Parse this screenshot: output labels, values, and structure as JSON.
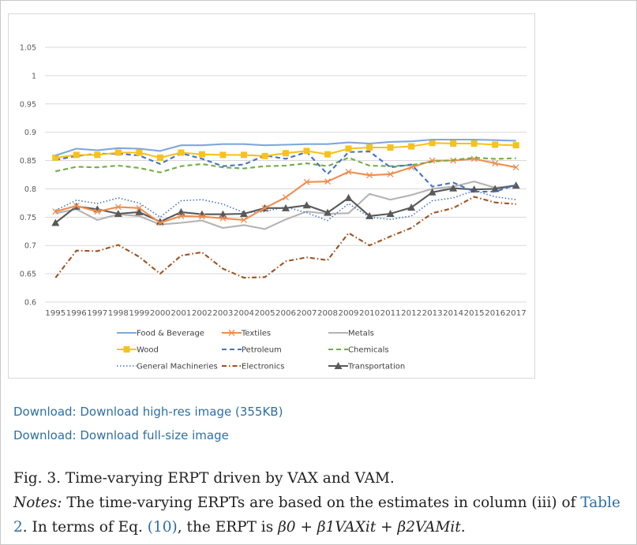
{
  "chart_data": {
    "type": "line",
    "title": "",
    "xlabel": "",
    "ylabel": "",
    "ylim": [
      0.6,
      1.05
    ],
    "yticks": [
      "0.6",
      "0.65",
      "0.7",
      "0.75",
      "0.8",
      "0.85",
      "0.9",
      "0.95",
      "1",
      "1.05"
    ],
    "categories": [
      "1995",
      "1996",
      "1997",
      "1998",
      "1999",
      "2000",
      "2001",
      "2002",
      "2003",
      "2004",
      "2005",
      "2006",
      "2007",
      "2008",
      "2009",
      "2010",
      "2011",
      "2012",
      "2013",
      "2014",
      "2015",
      "2016",
      "2017"
    ],
    "legend_position": "bottom",
    "series": [
      {
        "name": "Food & Beverage",
        "color": "#7fa7db",
        "dash": "solid",
        "marker": "none",
        "values": [
          0.859,
          0.871,
          0.868,
          0.872,
          0.871,
          0.867,
          0.877,
          0.877,
          0.879,
          0.879,
          0.877,
          0.878,
          0.879,
          0.879,
          0.882,
          0.88,
          0.883,
          0.884,
          0.887,
          0.887,
          0.887,
          0.886,
          0.885
        ]
      },
      {
        "name": "Textiles",
        "color": "#ee8d4f",
        "dash": "solid",
        "marker": "x",
        "values": [
          0.76,
          0.77,
          0.76,
          0.768,
          0.766,
          0.74,
          0.752,
          0.751,
          0.748,
          0.745,
          0.766,
          0.785,
          0.812,
          0.813,
          0.83,
          0.824,
          0.826,
          0.838,
          0.85,
          0.85,
          0.853,
          0.845,
          0.838
        ]
      },
      {
        "name": "Metals",
        "color": "#b3b3b3",
        "dash": "solid",
        "marker": "none",
        "values": [
          0.757,
          0.764,
          0.745,
          0.755,
          0.752,
          0.737,
          0.74,
          0.744,
          0.731,
          0.736,
          0.729,
          0.746,
          0.76,
          0.756,
          0.757,
          0.791,
          0.781,
          0.789,
          0.8,
          0.804,
          0.813,
          0.802,
          0.806
        ]
      },
      {
        "name": "Wood",
        "color": "#f7c21b",
        "dash": "solid",
        "marker": "square",
        "values": [
          0.855,
          0.86,
          0.86,
          0.864,
          0.864,
          0.855,
          0.864,
          0.861,
          0.86,
          0.86,
          0.858,
          0.863,
          0.867,
          0.861,
          0.871,
          0.873,
          0.873,
          0.875,
          0.881,
          0.88,
          0.88,
          0.878,
          0.877
        ]
      },
      {
        "name": "Petroleum",
        "color": "#4472c4",
        "dash": "dash",
        "marker": "none",
        "values": [
          0.851,
          0.858,
          0.862,
          0.862,
          0.859,
          0.844,
          0.863,
          0.853,
          0.84,
          0.843,
          0.859,
          0.853,
          0.865,
          0.826,
          0.865,
          0.866,
          0.838,
          0.843,
          0.804,
          0.811,
          0.795,
          0.795,
          0.807
        ]
      },
      {
        "name": "Chemicals",
        "color": "#70ad47",
        "dash": "dash",
        "marker": "none",
        "values": [
          0.831,
          0.839,
          0.838,
          0.841,
          0.837,
          0.829,
          0.84,
          0.844,
          0.838,
          0.836,
          0.84,
          0.841,
          0.845,
          0.84,
          0.855,
          0.841,
          0.84,
          0.842,
          0.848,
          0.851,
          0.855,
          0.853,
          0.854
        ]
      },
      {
        "name": "General Machineries",
        "color": "#4472c4",
        "dash": "dot",
        "marker": "none",
        "values": [
          0.762,
          0.78,
          0.774,
          0.784,
          0.775,
          0.75,
          0.779,
          0.781,
          0.773,
          0.758,
          0.76,
          0.768,
          0.758,
          0.744,
          0.774,
          0.75,
          0.746,
          0.752,
          0.779,
          0.784,
          0.797,
          0.786,
          0.781
        ]
      },
      {
        "name": "Electronics",
        "color": "#a0501e",
        "dash": "dashdot",
        "marker": "none",
        "values": [
          0.643,
          0.691,
          0.69,
          0.701,
          0.68,
          0.65,
          0.682,
          0.688,
          0.659,
          0.643,
          0.644,
          0.672,
          0.679,
          0.674,
          0.722,
          0.7,
          0.716,
          0.731,
          0.757,
          0.766,
          0.786,
          0.776,
          0.773
        ]
      },
      {
        "name": "Transportation",
        "color": "#595959",
        "dash": "solid",
        "marker": "triangle",
        "values": [
          0.74,
          0.769,
          0.764,
          0.756,
          0.759,
          0.742,
          0.759,
          0.755,
          0.755,
          0.756,
          0.766,
          0.766,
          0.771,
          0.758,
          0.784,
          0.752,
          0.756,
          0.767,
          0.794,
          0.801,
          0.799,
          0.8,
          0.806
        ]
      }
    ]
  },
  "links": {
    "high_res": "Download: Download high-res image (355KB)",
    "full_size": "Download: Download full-size image"
  },
  "caption": {
    "figure_title": "Fig. 3. Time-varying ERPT driven by VAX and VAM.",
    "notes_label": "Notes:",
    "notes_text_1": " The time-varying ERPTs are based on the estimates in column (iii) of ",
    "table_ref": "Table 2",
    "notes_text_2": ". In terms of Eq. ",
    "eq_ref": "(10)",
    "notes_text_3": ", the ERPT is ",
    "formula": "β0 + β1VAXit + β2VAMit",
    "end": "."
  }
}
